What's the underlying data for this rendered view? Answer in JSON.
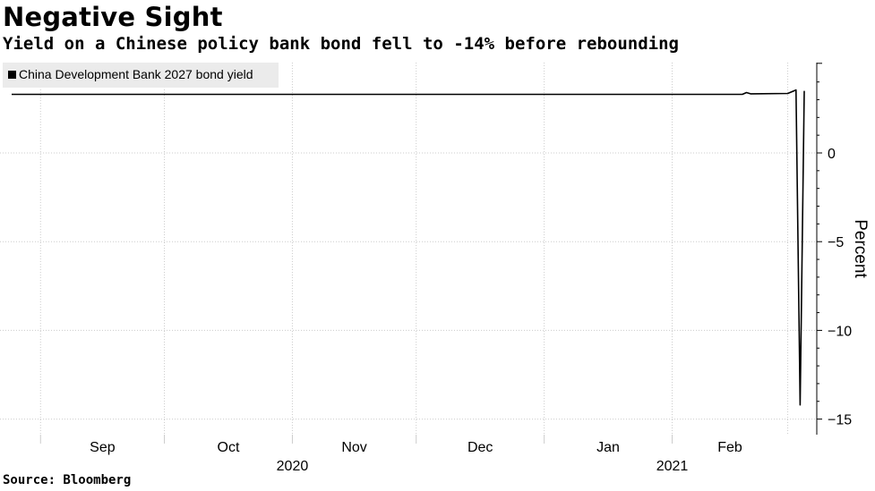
{
  "header": {
    "title": "Negative Sight",
    "subtitle": "Yield on a Chinese policy bank bond fell to -14% before rebounding"
  },
  "footer": {
    "source": "Source: Bloomberg"
  },
  "colors": {
    "line": "#000000",
    "grid": "#cccccc",
    "legend_bg": "#ebebeb",
    "axis": "#000000"
  },
  "chart_data": {
    "type": "line",
    "title": "Negative Sight",
    "subtitle": "Yield on a Chinese policy bank bond fell to -14% before rebounding",
    "ylabel": "Percent",
    "xlabel": "",
    "ylim": [
      -15,
      5
    ],
    "yticks": [
      0,
      -5,
      -10,
      -15
    ],
    "grid": true,
    "legend_position": "top-left",
    "x_date_range": [
      "2020-08-25",
      "2021-03-05"
    ],
    "x_month_ticks": [
      {
        "label": "Sep",
        "start": "2020-09-01",
        "end": "2020-10-01"
      },
      {
        "label": "Oct",
        "start": "2020-10-01",
        "end": "2020-11-01"
      },
      {
        "label": "Nov",
        "start": "2020-11-01",
        "end": "2020-12-01"
      },
      {
        "label": "Dec",
        "start": "2020-12-01",
        "end": "2021-01-01"
      },
      {
        "label": "Jan",
        "start": "2021-01-01",
        "end": "2021-02-01"
      },
      {
        "label": "Feb",
        "start": "2021-02-01",
        "end": "2021-03-01"
      }
    ],
    "x_year_labels": [
      {
        "label": "2020",
        "date": "2020-11-01"
      },
      {
        "label": "2021",
        "date": "2021-02-01"
      }
    ],
    "series": [
      {
        "name": "China Development Bank 2027 bond yield",
        "color": "#000000",
        "points": [
          {
            "date": "2020-08-25",
            "value": 3.3
          },
          {
            "date": "2021-02-18",
            "value": 3.3
          },
          {
            "date": "2021-02-19",
            "value": 3.4
          },
          {
            "date": "2021-02-20",
            "value": 3.33
          },
          {
            "date": "2021-03-01",
            "value": 3.35
          },
          {
            "date": "2021-03-03",
            "value": 3.55
          },
          {
            "date": "2021-03-04",
            "value": -14.2
          },
          {
            "date": "2021-03-05",
            "value": 3.5
          }
        ]
      }
    ]
  }
}
